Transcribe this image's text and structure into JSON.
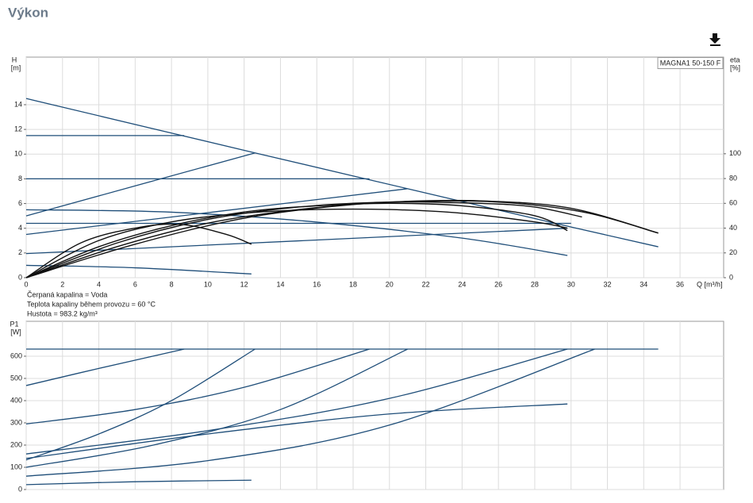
{
  "header": {
    "title": "Výkon"
  },
  "chart_data": [
    {
      "type": "line",
      "annotation": "MAGNA1 50-150 F",
      "ylabel": "H",
      "yunit": "[m]",
      "y2label": "eta",
      "y2unit": "[%]",
      "xlabel": "Q [m³/h]",
      "notes": [
        "Čerpaná kapalina = Voda",
        "Teplota kapaliny během provozu = 60 °C",
        "Hustota = 983.2 kg/m³"
      ],
      "xlim": [
        0,
        38.4
      ],
      "xticks": [
        0,
        2,
        4,
        6,
        8,
        10,
        12,
        14,
        16,
        18,
        20,
        22,
        24,
        26,
        28,
        30,
        32,
        34,
        36
      ],
      "ylim": [
        0,
        17.85
      ],
      "yticks": [
        0,
        2,
        4,
        6,
        8,
        10,
        12,
        14
      ],
      "y2lim": [
        0,
        178
      ],
      "y2ticks": [
        0,
        20,
        40,
        60,
        80,
        100
      ],
      "grid": true,
      "series": [
        {
          "color": "#1f4e79",
          "x": [
            0,
            12.6,
            21,
            30,
            34.8
          ],
          "values": [
            14.5,
            10.1,
            7.2,
            4.1,
            2.5
          ]
        },
        {
          "color": "#1f4e79",
          "x": [
            0,
            8.7
          ],
          "values": [
            11.5,
            11.5
          ]
        },
        {
          "color": "#1f4e79",
          "x": [
            0,
            18.9
          ],
          "values": [
            8,
            8
          ]
        },
        {
          "color": "#1f4e79",
          "x": [
            0,
            12.6
          ],
          "values": [
            5,
            10.1
          ]
        },
        {
          "color": "#1f4e79",
          "x": [
            0,
            21
          ],
          "values": [
            3.5,
            7.2
          ]
        },
        {
          "color": "#1f4e79",
          "x": [
            0,
            30
          ],
          "values": [
            4.4,
            4.4
          ]
        },
        {
          "color": "#1f4e79",
          "x": [
            0,
            29.8
          ],
          "values": [
            1.95,
            4.0
          ]
        },
        {
          "color": "#1f4e79",
          "x": [
            0,
            8,
            16,
            24,
            29.8
          ],
          "values": [
            5.5,
            5.3,
            4.5,
            3.2,
            1.8
          ]
        },
        {
          "color": "#1f4e79",
          "x": [
            0,
            6,
            12.4
          ],
          "values": [
            1,
            0.8,
            0.3
          ]
        },
        {
          "color": "#111111",
          "axis": "y2",
          "x": [
            0,
            3,
            6,
            8.5,
            11,
            12.4
          ],
          "values": [
            0,
            28,
            40,
            43,
            35,
            27
          ]
        },
        {
          "color": "#111111",
          "axis": "y2",
          "x": [
            0,
            4,
            8,
            12,
            16,
            20,
            24,
            28,
            29.8
          ],
          "values": [
            0,
            30,
            45,
            52,
            55,
            55,
            52,
            45,
            40
          ]
        },
        {
          "color": "#111111",
          "axis": "y2",
          "x": [
            0,
            4,
            8,
            12,
            16,
            20,
            24,
            28,
            29.8
          ],
          "values": [
            0,
            25,
            42,
            53,
            58,
            60,
            58,
            50,
            38
          ]
        },
        {
          "color": "#111111",
          "axis": "y2",
          "x": [
            0,
            5,
            10,
            15,
            20,
            25,
            28,
            30.6
          ],
          "values": [
            0,
            28,
            47,
            57,
            61,
            60,
            57,
            49
          ]
        },
        {
          "color": "#111111",
          "axis": "y2",
          "x": [
            0,
            5,
            10,
            15,
            20,
            25,
            30,
            34.8
          ],
          "values": [
            0,
            25,
            44,
            55,
            61,
            62,
            56,
            36
          ]
        },
        {
          "color": "#111111",
          "axis": "y2",
          "x": [
            0,
            6,
            12,
            18,
            23,
            27,
            31,
            34.8
          ],
          "values": [
            0,
            27,
            48,
            59,
            62,
            60,
            52,
            36
          ]
        }
      ]
    },
    {
      "type": "line",
      "ylabel": "P1",
      "yunit": "[W]",
      "sharex": true,
      "ylim": [
        0,
        757
      ],
      "yticks": [
        0,
        100,
        200,
        300,
        400,
        500,
        600
      ],
      "grid": true,
      "series": [
        {
          "color": "#1f4e79",
          "x": [
            0,
            34.8
          ],
          "values": [
            632,
            632
          ]
        },
        {
          "color": "#1f4e79",
          "x": [
            0,
            4,
            8.7
          ],
          "values": [
            468,
            545,
            632
          ]
        },
        {
          "color": "#1f4e79",
          "x": [
            0,
            6,
            12,
            18.9
          ],
          "values": [
            295,
            360,
            460,
            632
          ]
        },
        {
          "color": "#1f4e79",
          "x": [
            0,
            4,
            8,
            12.6
          ],
          "values": [
            133,
            250,
            400,
            632
          ]
        },
        {
          "color": "#1f4e79",
          "x": [
            0,
            7,
            14,
            21
          ],
          "values": [
            100,
            200,
            360,
            632
          ]
        },
        {
          "color": "#1f4e79",
          "x": [
            0,
            10,
            20,
            29.8
          ],
          "values": [
            160,
            265,
            410,
            632
          ]
        },
        {
          "color": "#1f4e79",
          "x": [
            0,
            10,
            20,
            31.3
          ],
          "values": [
            60,
            130,
            290,
            632
          ]
        },
        {
          "color": "#1f4e79",
          "x": [
            0,
            10,
            20,
            29.8
          ],
          "values": [
            140,
            250,
            340,
            385
          ]
        },
        {
          "color": "#1f4e79",
          "x": [
            0,
            6,
            12.4
          ],
          "values": [
            22,
            35,
            42
          ]
        }
      ]
    }
  ]
}
